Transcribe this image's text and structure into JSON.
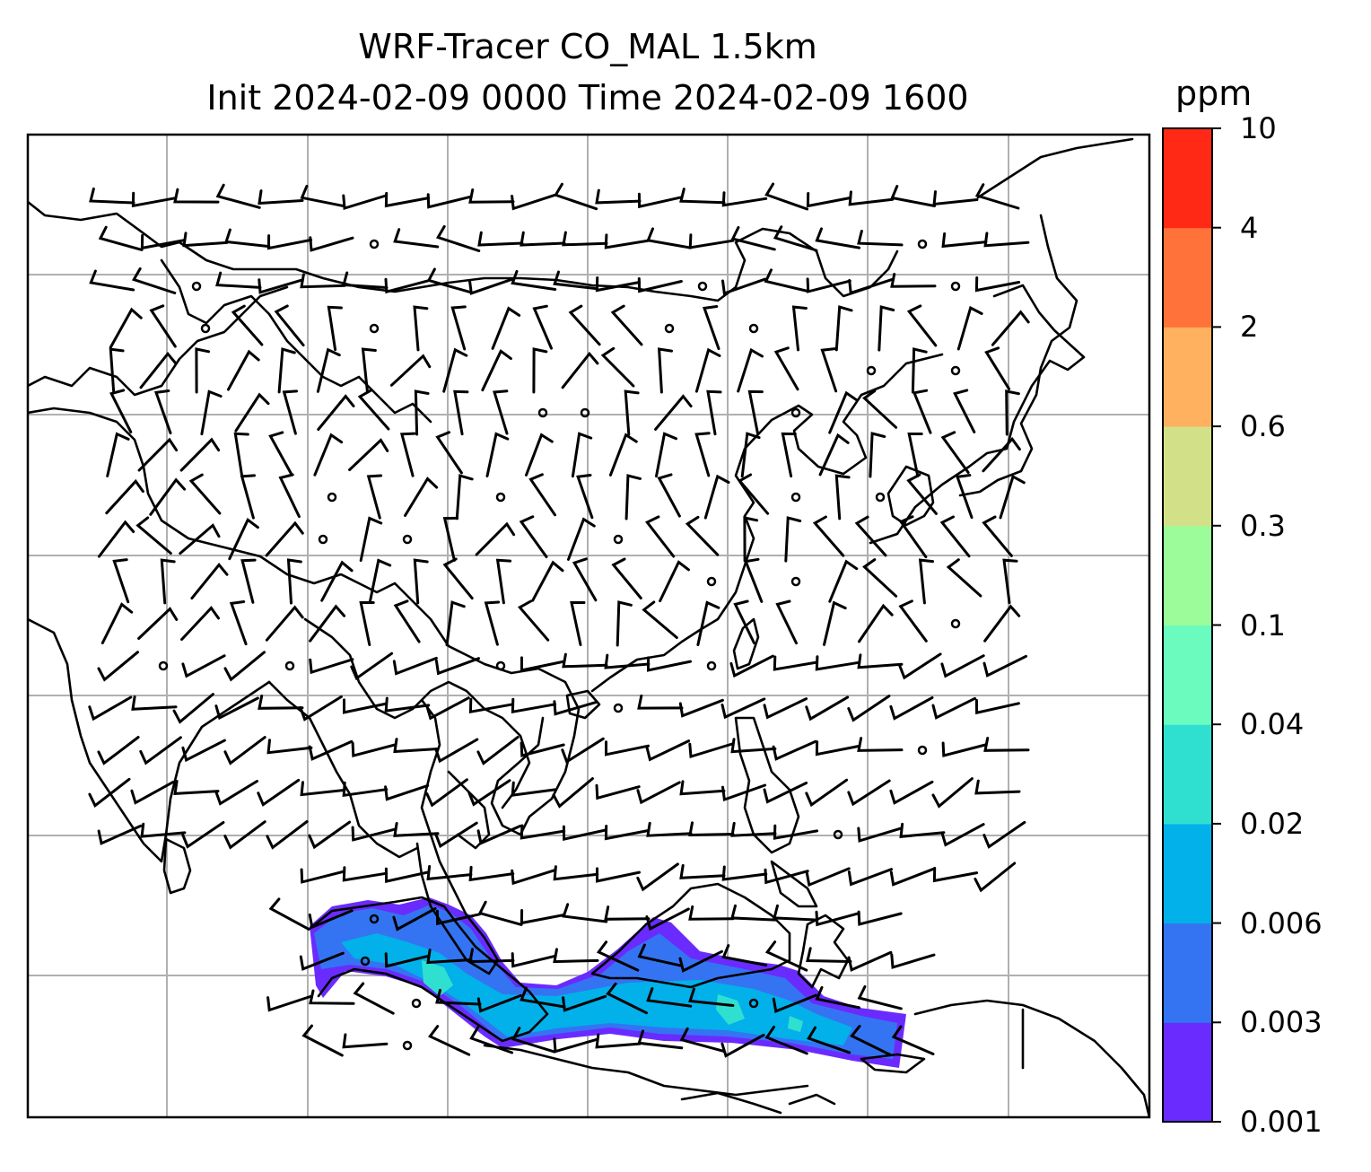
{
  "title": {
    "line1": "WRF-Tracer CO_MAL 1.5km",
    "line2": "Init 2024-02-09 0000 Time 2024-02-09 1600"
  },
  "colorbar": {
    "unit": "ppm",
    "levels": [
      "0.001",
      "0.003",
      "0.006",
      "0.02",
      "0.04",
      "0.1",
      "0.3",
      "0.6",
      "2",
      "4",
      "10"
    ],
    "colors": [
      "#6a2bff",
      "#3474f2",
      "#02b1ea",
      "#2fe0d0",
      "#6bfbbf",
      "#9cfc99",
      "#d2e188",
      "#ffb160",
      "#ff733b",
      "#ff2915"
    ]
  },
  "map": {
    "gridline_color": "#b0b0b0",
    "coastline_color": "#000000",
    "wind_barbs": "black",
    "plume_colors": [
      "#6a2bff",
      "#3474f2",
      "#02b1ea",
      "#2fe0d0"
    ]
  }
}
